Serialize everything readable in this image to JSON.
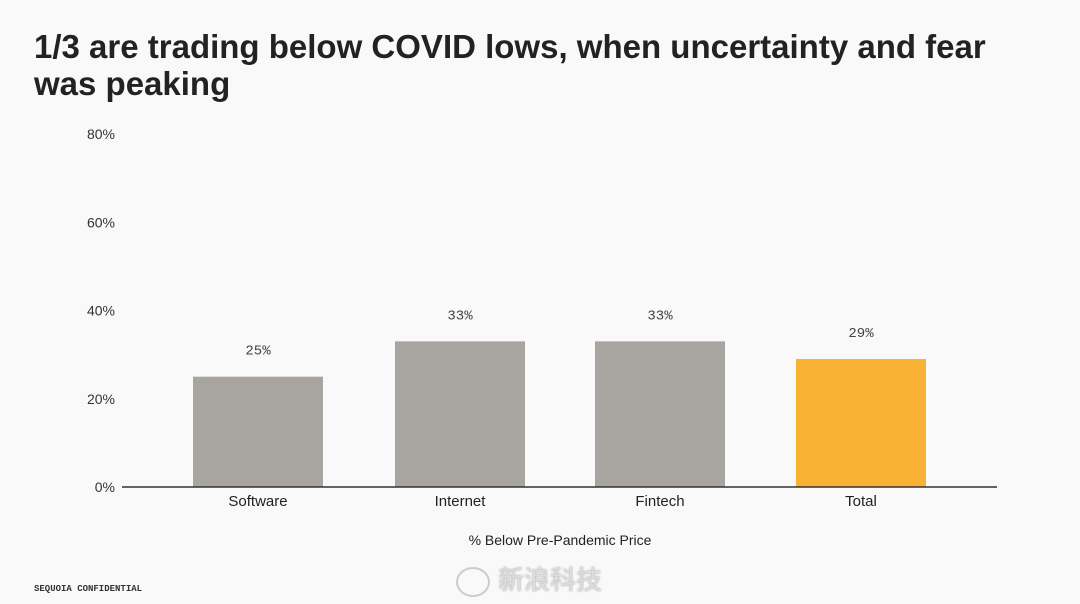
{
  "title": "1/3 are trading below COVID lows, when uncertainty and fear was peaking",
  "footer": "SEQUOIA CONFIDENTIAL",
  "watermark": "新浪科技",
  "colors": {
    "bar": "#a8a49f",
    "highlight": "#f9b233",
    "axis": "#333333"
  },
  "chart_data": {
    "type": "bar",
    "title": "1/3 are trading below COVID lows, when uncertainty and fear was peaking",
    "categories": [
      "Software",
      "Internet",
      "Fintech",
      "Total"
    ],
    "values": [
      25,
      33,
      33,
      29
    ],
    "data_labels": [
      "25%",
      "33%",
      "33%",
      "29%"
    ],
    "highlight": [
      "Total"
    ],
    "xlabel": "% Below Pre-Pandemic Price",
    "ylabel": "",
    "ylim": [
      0,
      80
    ],
    "yticks": [
      0,
      20,
      40,
      60,
      80
    ],
    "ytick_labels": [
      "0%",
      "20%",
      "40%",
      "60%",
      "80%"
    ],
    "grid": false
  }
}
